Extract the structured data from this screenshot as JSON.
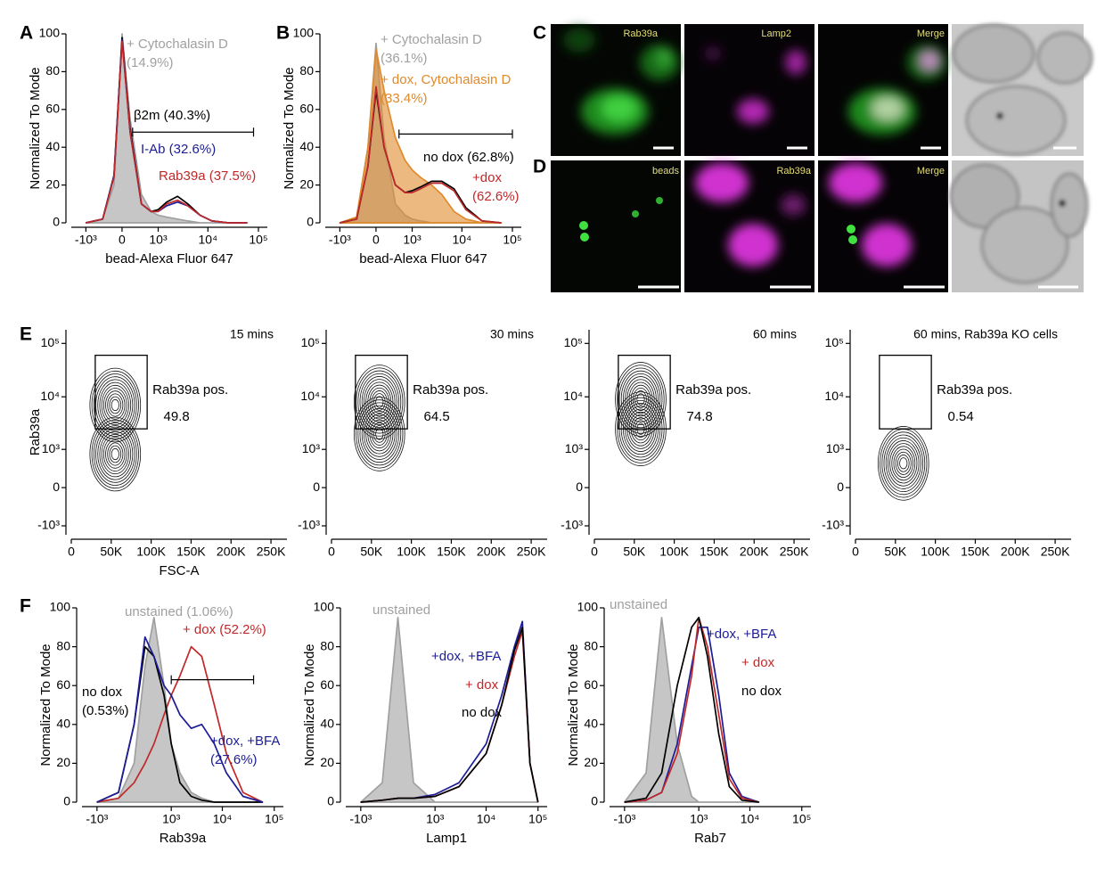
{
  "panel_labels": [
    "A",
    "B",
    "C",
    "D",
    "E",
    "F"
  ],
  "microscopy": {
    "row_c": [
      "Rab39a",
      "Lamp2",
      "Merge"
    ],
    "row_d": [
      "beads",
      "Rab39a",
      "Merge"
    ]
  },
  "chart_data": [
    {
      "type": "line",
      "x_label": "bead-Alexa Fluor 647",
      "y_label": "Normalized To Mode",
      "xscale": "biexponential",
      "x": [
        -1000,
        -400,
        -150,
        0,
        150,
        400,
        700,
        1000,
        1500,
        2500,
        4000,
        7000,
        12000,
        25000,
        60000
      ],
      "series": [
        {
          "name": "+ Cytochalasin D",
          "note": "(14.9%)",
          "color": "#a0a0a0",
          "filled": true,
          "values": [
            0,
            2,
            20,
            100,
            55,
            15,
            6,
            4,
            3,
            2,
            1,
            0,
            0,
            0,
            0
          ]
        },
        {
          "name": "β2m (40.3%)",
          "color": "#000000",
          "values": [
            0,
            2,
            25,
            98,
            50,
            10,
            6,
            7,
            11,
            14,
            10,
            4,
            1,
            0,
            0
          ]
        },
        {
          "name": "I-Ab (32.6%)",
          "color": "#1c1c96",
          "values": [
            0,
            2,
            25,
            97,
            48,
            10,
            6,
            6,
            9,
            11,
            9,
            4,
            1,
            0,
            0
          ]
        },
        {
          "name": "Rab39a (37.5%)",
          "color": "#c0282a",
          "values": [
            0,
            2,
            24,
            96,
            48,
            10,
            6,
            6,
            10,
            12,
            9,
            4,
            1,
            0,
            0
          ]
        }
      ],
      "gate": {
        "x": [
          200,
          80000
        ],
        "y": 48
      },
      "xlim": [
        -2000,
        150000
      ],
      "ylim": [
        0,
        100
      ],
      "xticks": [
        {
          "value": -1000,
          "label": "-10³"
        },
        0,
        {
          "value": 1000,
          "label": "10³"
        },
        {
          "value": 10000,
          "label": "10⁴"
        },
        {
          "value": 100000,
          "label": "10⁵"
        }
      ],
      "yticks": [
        0,
        20,
        40,
        60,
        80,
        100
      ]
    },
    {
      "type": "line",
      "x_label": "bead-Alexa Fluor 647",
      "y_label": "Normalized To Mode",
      "xscale": "biexponential",
      "x": [
        -1000,
        -400,
        -150,
        0,
        150,
        400,
        700,
        1000,
        1500,
        2500,
        4000,
        7000,
        12000,
        25000,
        60000
      ],
      "series": [
        {
          "name": "+ Cytochalasin D",
          "note": "(36.1%)",
          "color": "#a0a0a0",
          "filled": true,
          "values": [
            0,
            3,
            40,
            95,
            45,
            10,
            4,
            2,
            1,
            0,
            0,
            0,
            0,
            0,
            0
          ]
        },
        {
          "name": "+ dox, Cytochalasin D",
          "note": "(33.4%)",
          "color": "#e08a2c",
          "filled": true,
          "values": [
            0,
            3,
            40,
            92,
            70,
            45,
            33,
            28,
            24,
            20,
            15,
            6,
            2,
            0,
            0
          ]
        },
        {
          "name": "no dox (62.8%)",
          "color": "#000000",
          "values": [
            0,
            2,
            30,
            70,
            40,
            20,
            16,
            17,
            19,
            22,
            22,
            18,
            8,
            1,
            0
          ]
        },
        {
          "name": "+dox",
          "note": "(62.6%)",
          "color": "#c0282a",
          "values": [
            0,
            2,
            30,
            72,
            40,
            20,
            16,
            16,
            18,
            21,
            21,
            17,
            7,
            1,
            0
          ]
        }
      ],
      "gate": {
        "x": [
          500,
          100000
        ],
        "y": 47
      },
      "xlim": [
        -2000,
        150000
      ],
      "ylim": [
        0,
        100
      ],
      "xticks": [
        {
          "value": -1000,
          "label": "-10³"
        },
        0,
        {
          "value": 1000,
          "label": "10³"
        },
        {
          "value": 10000,
          "label": "10⁴"
        },
        {
          "value": 100000,
          "label": "10⁵"
        }
      ],
      "yticks": [
        0,
        20,
        40,
        60,
        80,
        100
      ]
    },
    {
      "type": "contour",
      "title": "15 mins",
      "x_label": "FSC-A",
      "y_label": "Rab39a",
      "yscale": "biexponential",
      "populations": [
        {
          "x": 55000,
          "y": 7000
        },
        {
          "x": 55000,
          "y": 800
        }
      ],
      "gate": {
        "x": [
          30000,
          95000
        ],
        "y": [
          2500,
          60000
        ],
        "label": "Rab39a pos.",
        "percent": 49.8
      },
      "xlim": [
        0,
        270000
      ],
      "ylim": [
        -1500,
        180000
      ],
      "xticks": [
        0,
        {
          "value": 50000,
          "label": "50K"
        },
        {
          "value": 100000,
          "label": "100K"
        },
        {
          "value": 150000,
          "label": "150K"
        },
        {
          "value": 200000,
          "label": "200K"
        },
        {
          "value": 250000,
          "label": "250K"
        }
      ],
      "yticks": [
        {
          "value": -1000,
          "label": "-10³"
        },
        0,
        {
          "value": 1000,
          "label": "10³"
        },
        {
          "value": 10000,
          "label": "10⁴"
        },
        {
          "value": 100000,
          "label": "10⁵"
        }
      ]
    },
    {
      "type": "contour",
      "title": "30 mins",
      "yscale": "biexponential",
      "populations": [
        {
          "x": 60000,
          "y": 8000
        },
        {
          "x": 60000,
          "y": 2000
        }
      ],
      "gate": {
        "x": [
          30000,
          95000
        ],
        "y": [
          2500,
          60000
        ],
        "label": "Rab39a pos.",
        "percent": 64.5
      },
      "xlim": [
        0,
        270000
      ],
      "ylim": [
        -1500,
        180000
      ],
      "xticks": [
        0,
        {
          "value": 50000,
          "label": "50K"
        },
        {
          "value": 100000,
          "label": "100K"
        },
        {
          "value": 150000,
          "label": "150K"
        },
        {
          "value": 200000,
          "label": "200K"
        },
        {
          "value": 250000,
          "label": "250K"
        }
      ],
      "yticks": [
        {
          "value": -1000,
          "label": "-10³"
        },
        0,
        {
          "value": 1000,
          "label": "10³"
        },
        {
          "value": 10000,
          "label": "10⁴"
        },
        {
          "value": 100000,
          "label": "10⁵"
        }
      ]
    },
    {
      "type": "contour",
      "title": "60 mins",
      "yscale": "biexponential",
      "populations": [
        {
          "x": 58000,
          "y": 9000
        },
        {
          "x": 58000,
          "y": 2500
        }
      ],
      "gate": {
        "x": [
          30000,
          95000
        ],
        "y": [
          2500,
          60000
        ],
        "label": "Rab39a pos.",
        "percent": 74.8
      },
      "xlim": [
        0,
        270000
      ],
      "ylim": [
        -1500,
        180000
      ],
      "xticks": [
        0,
        {
          "value": 50000,
          "label": "50K"
        },
        {
          "value": 100000,
          "label": "100K"
        },
        {
          "value": 150000,
          "label": "150K"
        },
        {
          "value": 200000,
          "label": "200K"
        },
        {
          "value": 250000,
          "label": "250K"
        }
      ],
      "yticks": [
        {
          "value": -1000,
          "label": "-10³"
        },
        0,
        {
          "value": 1000,
          "label": "10³"
        },
        {
          "value": 10000,
          "label": "10⁴"
        },
        {
          "value": 100000,
          "label": "10⁵"
        }
      ]
    },
    {
      "type": "contour",
      "title": "60 mins, Rab39a KO cells",
      "yscale": "biexponential",
      "populations": [
        {
          "x": 60000,
          "y": 500
        }
      ],
      "gate": {
        "x": [
          30000,
          95000
        ],
        "y": [
          2500,
          60000
        ],
        "label": "Rab39a pos.",
        "percent": 0.54
      },
      "xlim": [
        0,
        270000
      ],
      "ylim": [
        -1500,
        180000
      ],
      "xticks": [
        0,
        {
          "value": 50000,
          "label": "50K"
        },
        {
          "value": 100000,
          "label": "100K"
        },
        {
          "value": 150000,
          "label": "150K"
        },
        {
          "value": 200000,
          "label": "200K"
        },
        {
          "value": 250000,
          "label": "250K"
        }
      ],
      "yticks": [
        {
          "value": -1000,
          "label": "-10³"
        },
        0,
        {
          "value": 1000,
          "label": "10³"
        },
        {
          "value": 10000,
          "label": "10⁴"
        },
        {
          "value": 100000,
          "label": "10⁵"
        }
      ]
    },
    {
      "type": "line",
      "x_label": "Rab39a",
      "y_label": "Normalized To Mode",
      "xscale": "biexponential",
      "x": [
        -1000,
        -300,
        0,
        200,
        400,
        700,
        1000,
        1500,
        2500,
        4000,
        7000,
        12000,
        25000,
        60000
      ],
      "series": [
        {
          "name": "unstained (1.06%)",
          "color": "#a0a0a0",
          "filled": true,
          "values": [
            0,
            2,
            20,
            70,
            95,
            60,
            30,
            15,
            5,
            2,
            0,
            0,
            0,
            0
          ]
        },
        {
          "name": "+ dox (52.2%)",
          "color": "#c0282a",
          "values": [
            0,
            2,
            10,
            20,
            30,
            45,
            55,
            65,
            80,
            75,
            50,
            25,
            5,
            0
          ]
        },
        {
          "name": "no dox",
          "note": "(0.53%)",
          "color": "#000000",
          "values": [
            0,
            5,
            40,
            80,
            75,
            55,
            30,
            10,
            3,
            1,
            0,
            0,
            0,
            0
          ]
        },
        {
          "name": "+dox, +BFA",
          "note": "(27.6%)",
          "color": "#1c1c96",
          "values": [
            0,
            5,
            40,
            85,
            75,
            60,
            55,
            45,
            38,
            40,
            30,
            15,
            3,
            0
          ]
        }
      ],
      "gate": {
        "x": [
          1000,
          40000
        ],
        "y": 63
      },
      "xlim": [
        -2000,
        150000
      ],
      "ylim": [
        0,
        100
      ],
      "xticks": [
        {
          "value": -1000,
          "label": "-10³"
        },
        {
          "value": 1000,
          "label": "10³"
        },
        {
          "value": 10000,
          "label": "10⁴"
        },
        {
          "value": 100000,
          "label": "10⁵"
        }
      ],
      "yticks": [
        0,
        20,
        40,
        60,
        80,
        100
      ]
    },
    {
      "type": "line",
      "x_label": "Lamp1",
      "y_label": "Normalized To Mode",
      "xscale": "biexponential",
      "x": [
        -1000,
        -300,
        0,
        300,
        1000,
        3000,
        10000,
        20000,
        35000,
        50000,
        70000,
        100000
      ],
      "series": [
        {
          "name": "unstained",
          "color": "#a0a0a0",
          "filled": true,
          "values": [
            0,
            10,
            95,
            10,
            0,
            0,
            0,
            0,
            0,
            0,
            0,
            0
          ]
        },
        {
          "name": "+dox, +BFA",
          "color": "#1c1c96",
          "values": [
            0,
            1,
            2,
            2,
            4,
            10,
            30,
            55,
            80,
            93,
            20,
            0
          ]
        },
        {
          "name": "+ dox",
          "color": "#c0282a",
          "values": [
            0,
            1,
            2,
            2,
            3,
            8,
            25,
            50,
            75,
            88,
            20,
            0
          ]
        },
        {
          "name": "no dox",
          "color": "#000000",
          "values": [
            0,
            1,
            2,
            2,
            3,
            8,
            25,
            50,
            78,
            90,
            20,
            0
          ]
        }
      ],
      "xlim": [
        -2000,
        150000
      ],
      "ylim": [
        0,
        100
      ],
      "xticks": [
        {
          "value": -1000,
          "label": "-10³"
        },
        {
          "value": 1000,
          "label": "10³"
        },
        {
          "value": 10000,
          "label": "10⁴"
        },
        {
          "value": 100000,
          "label": "10⁵"
        }
      ],
      "yticks": [
        0,
        20,
        40,
        60,
        80,
        100
      ]
    },
    {
      "type": "line",
      "x_label": "Rab7",
      "y_label": "Normalized To Mode",
      "xscale": "biexponential",
      "x": [
        -1000,
        -300,
        0,
        300,
        700,
        1000,
        1500,
        2500,
        4000,
        7000,
        15000
      ],
      "series": [
        {
          "name": "unstained",
          "color": "#a0a0a0",
          "filled": true,
          "values": [
            0,
            15,
            95,
            30,
            3,
            0,
            0,
            0,
            0,
            0,
            0
          ]
        },
        {
          "name": "+dox, +BFA",
          "color": "#1c1c96",
          "values": [
            0,
            1,
            5,
            30,
            70,
            90,
            90,
            55,
            15,
            3,
            0
          ]
        },
        {
          "name": "+ dox",
          "color": "#c0282a",
          "values": [
            0,
            1,
            5,
            25,
            65,
            95,
            80,
            45,
            12,
            2,
            0
          ]
        },
        {
          "name": "no dox",
          "color": "#000000",
          "values": [
            0,
            2,
            15,
            60,
            90,
            95,
            75,
            35,
            8,
            1,
            0
          ]
        }
      ],
      "xlim": [
        -2000,
        150000
      ],
      "ylim": [
        0,
        100
      ],
      "xticks": [
        {
          "value": -1000,
          "label": "-10³"
        },
        {
          "value": 1000,
          "label": "10³"
        },
        {
          "value": 10000,
          "label": "10⁴"
        },
        {
          "value": 100000,
          "label": "10⁵"
        }
      ],
      "yticks": [
        0,
        20,
        40,
        60,
        80,
        100
      ]
    }
  ]
}
